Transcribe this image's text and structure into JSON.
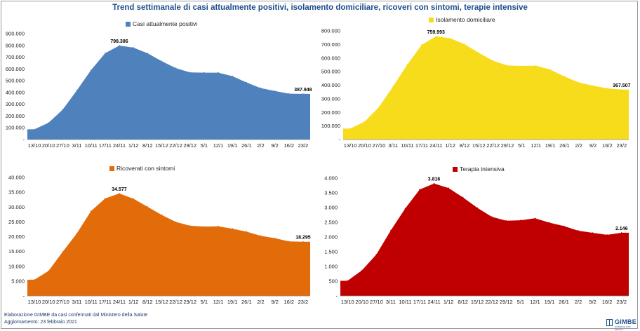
{
  "title": "Trend settimanale di casi attualmente positivi, isolamento domiciliare, ricoveri con sintomi, terapie intensive",
  "footer": {
    "line1": "Elaborazione GIMBE da casi confermati dal Ministero della Salute",
    "line2": "Aggiornamento:  23 febbraio 2021"
  },
  "logo": {
    "text": "GIMBE",
    "subtext": "EVIDENCE FOR HEALTH"
  },
  "chart_data": [
    {
      "type": "area",
      "title": "",
      "legend": "Casi attualmente positivi",
      "legend_position": "top",
      "color": "#4f81bd",
      "x": [
        "13/10",
        "20/10",
        "27/10",
        "3/11",
        "10/11",
        "17/11",
        "24/11",
        "1/12",
        "8/12",
        "15/12",
        "22/12",
        "29/12",
        "5/1",
        "12/1",
        "19/1",
        "26/1",
        "2/2",
        "9/2",
        "16/2",
        "23/2"
      ],
      "values": [
        87193,
        142739,
        255090,
        418142,
        590110,
        733810,
        798386,
        781179,
        732780,
        666001,
        606845,
        570747,
        568690,
        568312,
        538294,
        484985,
        437421,
        412431,
        389433,
        387948
      ],
      "ylim": [
        0,
        900000
      ],
      "yticks": [
        "-",
        "100.000",
        "200.000",
        "300.000",
        "400.000",
        "500.000",
        "600.000",
        "700.000",
        "800.000",
        "900.000"
      ],
      "data_labels": [
        {
          "index": 6,
          "text": "798.386"
        },
        {
          "index": 19,
          "text": "387.948"
        }
      ],
      "grid": false
    },
    {
      "type": "area",
      "title": "",
      "legend": "Isolamento domiciliare",
      "legend_position": "top",
      "color": "#f7dc1c",
      "x": [
        "13/10",
        "20/10",
        "27/10",
        "3/11",
        "10/11",
        "17/11",
        "24/11",
        "1/12",
        "8/12",
        "15/12",
        "22/12",
        "29/12",
        "5/1",
        "12/1",
        "19/1",
        "26/1",
        "2/2",
        "9/2",
        "16/2",
        "23/2"
      ],
      "values": [
        80888,
        131780,
        238000,
        392000,
        553000,
        697000,
        759993,
        745000,
        702000,
        638000,
        580000,
        545000,
        542000,
        543000,
        515000,
        464000,
        420000,
        396000,
        377000,
        367507
      ],
      "ylim": [
        0,
        800000
      ],
      "yticks": [
        "-",
        "100.000",
        "200.000",
        "300.000",
        "400.000",
        "500.000",
        "600.000",
        "700.000",
        "800.000"
      ],
      "data_labels": [
        {
          "index": 6,
          "text": "759.993"
        },
        {
          "index": 19,
          "text": "367.507"
        }
      ],
      "grid": false
    },
    {
      "type": "area",
      "title": "",
      "legend": "Ricoverati con sintomi",
      "legend_position": "top",
      "color": "#e36c0a",
      "x": [
        "13/10",
        "20/10",
        "27/10",
        "3/11",
        "10/11",
        "17/11",
        "24/11",
        "1/12",
        "8/12",
        "15/12",
        "22/12",
        "29/12",
        "5/1",
        "12/1",
        "19/1",
        "26/1",
        "2/2",
        "9/2",
        "16/2",
        "23/2"
      ],
      "values": [
        5470,
        8454,
        14900,
        21114,
        28633,
        32900,
        34577,
        32811,
        30081,
        27342,
        24964,
        23700,
        23400,
        23500,
        22700,
        21700,
        20300,
        19500,
        18400,
        18295
      ],
      "ylim": [
        0,
        40000
      ],
      "yticks": [
        "-",
        "5.000",
        "10.000",
        "15.000",
        "20.000",
        "25.000",
        "30.000",
        "35.000",
        "40.000"
      ],
      "data_labels": [
        {
          "index": 6,
          "text": "34.577"
        },
        {
          "index": 19,
          "text": "18.295"
        }
      ],
      "grid": false
    },
    {
      "type": "area",
      "title": "",
      "legend": "Terapia intensiva",
      "legend_position": "top",
      "color": "#c00000",
      "x": [
        "13/10",
        "20/10",
        "27/10",
        "3/11",
        "10/11",
        "17/11",
        "24/11",
        "1/12",
        "8/12",
        "15/12",
        "22/12",
        "29/12",
        "5/1",
        "12/1",
        "19/1",
        "26/1",
        "2/2",
        "9/2",
        "16/2",
        "23/2"
      ],
      "values": [
        514,
        870,
        1411,
        2225,
        2971,
        3612,
        3816,
        3663,
        3345,
        2990,
        2687,
        2555,
        2569,
        2636,
        2487,
        2372,
        2215,
        2143,
        2074,
        2146
      ],
      "ylim": [
        0,
        4000
      ],
      "yticks": [
        "-",
        "500",
        "1.000",
        "1.500",
        "2.000",
        "2.500",
        "3.000",
        "3.500",
        "4.000"
      ],
      "data_labels": [
        {
          "index": 6,
          "text": "3.816"
        },
        {
          "index": 19,
          "text": "2.146"
        }
      ],
      "grid": false
    }
  ]
}
